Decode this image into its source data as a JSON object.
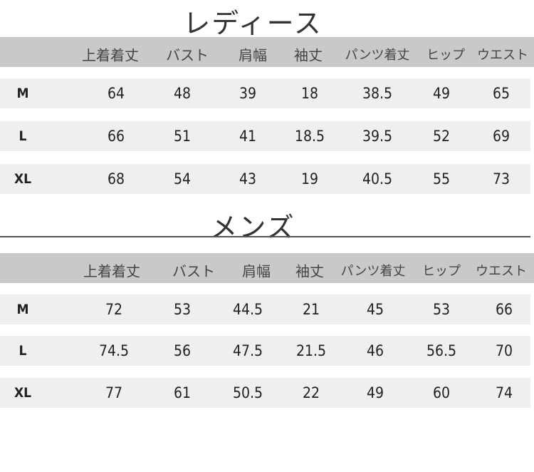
{
  "ladies": {
    "title": "レディース",
    "headers": [
      "上着着丈",
      "バスト",
      "肩幅",
      "袖丈",
      "パンツ着丈",
      "ヒップ",
      "ウエスト"
    ],
    "rows": [
      {
        "size": "M",
        "values": [
          "64",
          "48",
          "39",
          "18",
          "38.5",
          "49",
          "65"
        ]
      },
      {
        "size": "L",
        "values": [
          "66",
          "51",
          "41",
          "18.5",
          "39.5",
          "52",
          "69"
        ]
      },
      {
        "size": "XL",
        "values": [
          "68",
          "54",
          "43",
          "19",
          "40.5",
          "55",
          "73"
        ]
      }
    ]
  },
  "mens": {
    "title": "メンズ",
    "headers": [
      "上着着丈",
      "バスト",
      "肩幅",
      "袖丈",
      "パンツ着丈",
      "ヒップ",
      "ウエスト"
    ],
    "rows": [
      {
        "size": "M",
        "values": [
          "72",
          "53",
          "44.5",
          "21",
          "45",
          "53",
          "66"
        ]
      },
      {
        "size": "L",
        "values": [
          "74.5",
          "56",
          "47.5",
          "21.5",
          "46",
          "56.5",
          "70"
        ]
      },
      {
        "size": "XL",
        "values": [
          "77",
          "61",
          "50.5",
          "22",
          "49",
          "60",
          "74"
        ]
      }
    ]
  },
  "colors": {
    "header_bar": "#c9c9c9",
    "row_bg": "#efefef"
  }
}
